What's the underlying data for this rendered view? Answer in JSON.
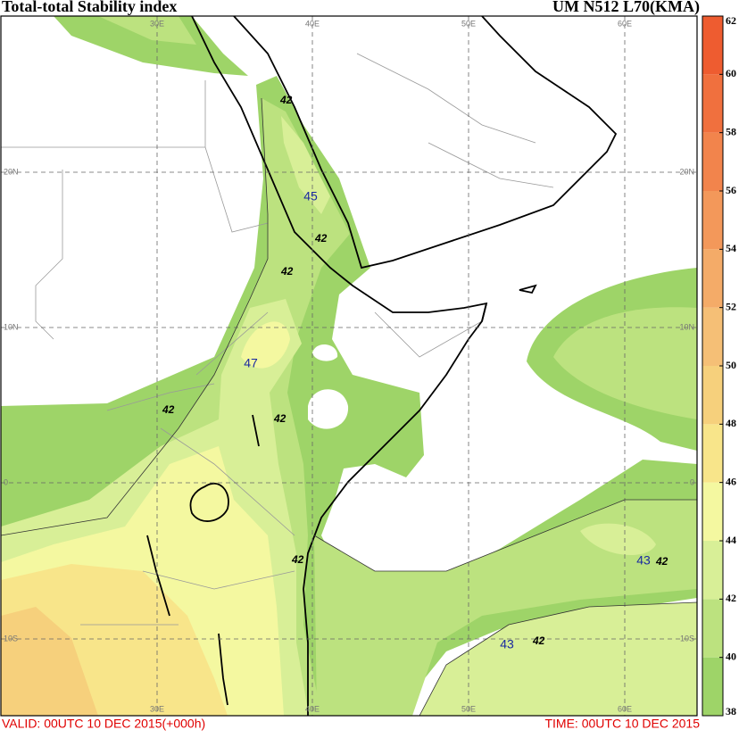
{
  "header": {
    "title": "Total-total Stability index",
    "model": "UM N512 L70(KMA)"
  },
  "footer": {
    "valid": "VALID: 00UTC 10 DEC 2015(+000h)",
    "time": "TIME: 00UTC 10 DEC 2015"
  },
  "grid_labels": {
    "lon": [
      "30E",
      "40E",
      "50E",
      "60E"
    ],
    "lat": [
      "20N",
      "10N",
      "0",
      "10S"
    ]
  },
  "contour_labels": [
    "42",
    "42",
    "42",
    "42",
    "42",
    "42",
    "42",
    "42"
  ],
  "maxima": [
    "45",
    "47",
    "43",
    "43"
  ],
  "colorbar": {
    "levels": [
      38,
      40,
      42,
      44,
      46,
      48,
      50,
      52,
      54,
      56,
      58,
      60,
      62
    ],
    "colors": [
      "#9ed468",
      "#bce27f",
      "#d8ef97",
      "#f4f8a0",
      "#f8e58a",
      "#f6d07c",
      "#f5bf76",
      "#f4ab68",
      "#f3985a",
      "#f2844c",
      "#f0703e",
      "#ee5c30"
    ]
  }
}
